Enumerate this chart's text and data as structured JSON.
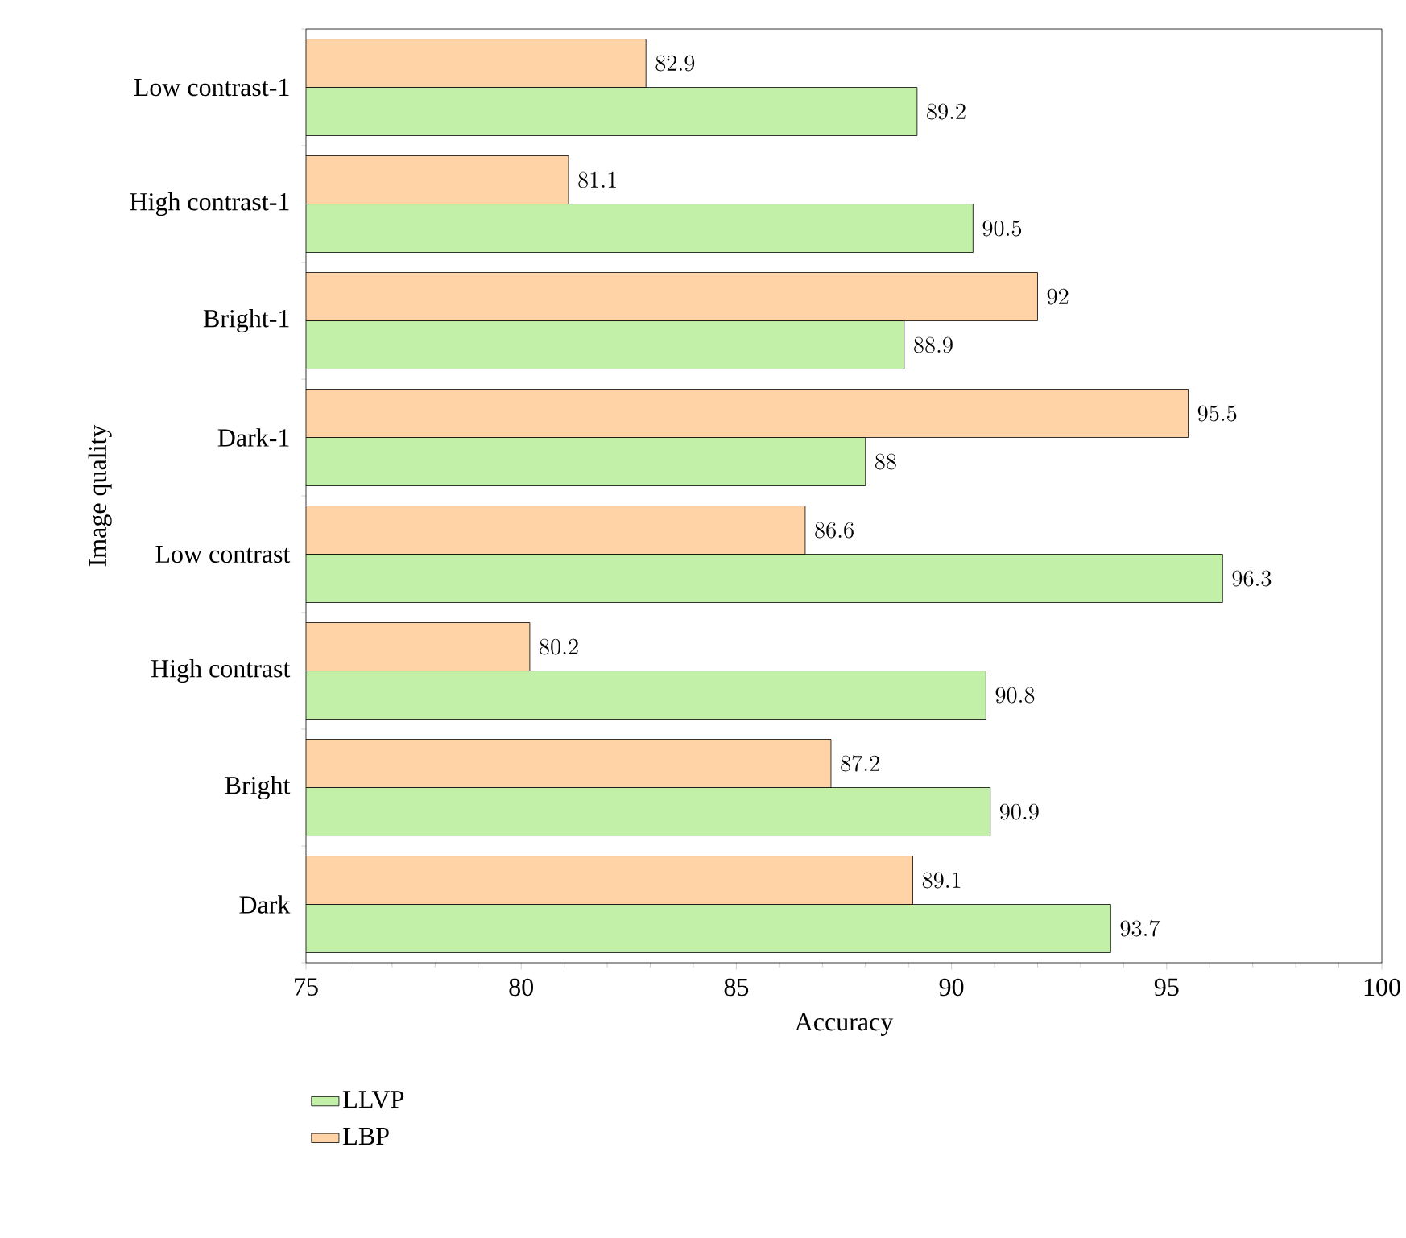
{
  "chart_data": {
    "type": "bar",
    "orientation": "horizontal",
    "xlabel": "Accuracy",
    "ylabel": "Image quality",
    "categories": [
      "Low contrast-1",
      "High contrast-1",
      "Bright-1",
      "Dark-1",
      "Low contrast",
      "High contrast",
      "Bright",
      "Dark"
    ],
    "series": [
      {
        "name": "LLVP",
        "color": "#c2f0a8",
        "values": [
          89.2,
          90.5,
          88.9,
          88,
          96.3,
          90.8,
          90.9,
          93.7
        ]
      },
      {
        "name": "LBP",
        "color": "#ffd3a6",
        "values": [
          82.9,
          81.1,
          92,
          95.5,
          86.6,
          80.2,
          87.2,
          89.1
        ]
      }
    ],
    "xlim": [
      75,
      100
    ],
    "xticks": [
      75,
      80,
      85,
      90,
      95,
      100
    ],
    "data_labels": true,
    "legend": "bottom left",
    "grid": false
  }
}
